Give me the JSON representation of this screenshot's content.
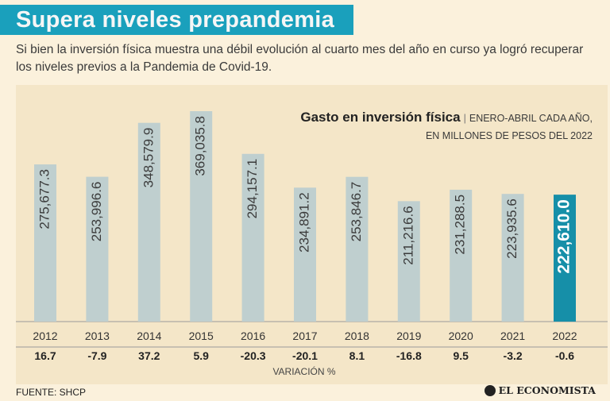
{
  "header": {
    "title": "Supera niveles prepandemia",
    "subtitle": "Si bien la inversión física muestra una débil evolución al cuarto mes del año en curso ya logró recuperar los niveles previos a la Pandemia de Covid-19."
  },
  "chart_title": {
    "main": "Gasto en inversión física",
    "separator": "|",
    "detail_line1": "ENERO-ABRIL CADA AÑO,",
    "detail_line2": "EN MILLONES DE PESOS DEL 2022"
  },
  "chart_data": {
    "type": "bar",
    "title": "Gasto en inversión física",
    "categories": [
      "2012",
      "2013",
      "2014",
      "2015",
      "2016",
      "2017",
      "2018",
      "2019",
      "2020",
      "2021",
      "2022"
    ],
    "values": [
      275677.3,
      253996.6,
      348579.9,
      369035.8,
      294157.1,
      234891.2,
      253846.7,
      211216.6,
      231288.5,
      223935.6,
      222610.0
    ],
    "value_labels": [
      "275,677.3",
      "253,996.6",
      "348,579.9",
      "369,035.8",
      "294,157.1",
      "234,891.2",
      "253,846.7",
      "211,216.6",
      "231,288.5",
      "223,935.6",
      "222,610.0"
    ],
    "variation_labels": [
      "16.7",
      "-7.9",
      "37.2",
      "5.9",
      "-20.3",
      "-20.1",
      "8.1",
      "-16.8",
      "9.5",
      "-3.2",
      "-0.6"
    ],
    "variation_axis_label": "VARIACIÓN %",
    "highlight_index": 10,
    "ylim": [
      0,
      380000
    ],
    "colors": {
      "bar": "#bfcfcf",
      "highlight": "#168fa8",
      "label": "#3b3b3b",
      "highlight_label": "#ffffff"
    }
  },
  "footer": {
    "source": "FUENTE: SHCP",
    "brand": "EL ECONOMISTA"
  }
}
